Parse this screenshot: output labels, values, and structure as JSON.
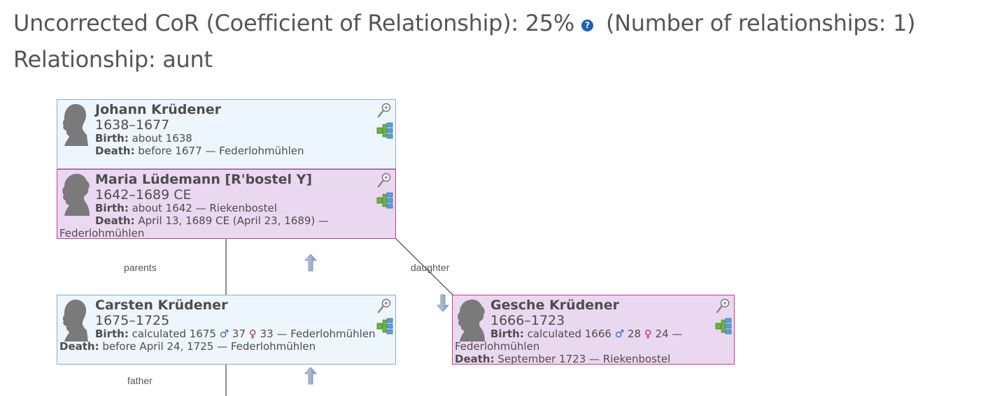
{
  "header": {
    "cor_label": "Uncorrected CoR (Coefficient of Relationship): 25%",
    "help_glyph": "?",
    "num_relationships": "(Number of relationships: 1)",
    "relationship": "Relationship: aunt"
  },
  "edge_labels": {
    "parents": "parents",
    "daughter": "daughter",
    "father": "father"
  },
  "people": {
    "johann": {
      "name": "Johann Krüdener",
      "dates": "1638–1677",
      "birth_label": "Birth:",
      "birth_value": "about 1638",
      "death_label": "Death:",
      "death_value": "before 1677 — Federlohmühlen"
    },
    "maria": {
      "name": "Maria Lüdemann [R'bostel Y]",
      "dates": "1642–1689 CE",
      "birth_label": "Birth:",
      "birth_value": "about 1642 — Riekenbostel",
      "death_label": "Death:",
      "death_value": "April 13, 1689 CE (April 23, 1689) —",
      "death_place": "Federlohmühlen"
    },
    "carsten": {
      "name": "Carsten Krüdener",
      "dates": "1675–1725",
      "birth_label": "Birth:",
      "birth_value": "calculated 1675",
      "male_sym": "♂",
      "father_age": "37",
      "female_sym": "♀",
      "mother_age": "33",
      "birth_place": "— Federlohmühlen",
      "death_label": "Death:",
      "death_value": "before April 24, 1725 — Federlohmühlen"
    },
    "gesche": {
      "name": "Gesche Krüdener",
      "dates": "1666–1723",
      "birth_label": "Birth:",
      "birth_value": "calculated 1666",
      "male_sym": "♂",
      "father_age": "28",
      "female_sym": "♀",
      "mother_age": "24 —",
      "birth_place": "Federlohmühlen",
      "death_label": "Death:",
      "death_value": "September 1723 — Riekenbostel"
    }
  },
  "colors": {
    "male_bg": "#eef6fd",
    "male_border": "#86aecd",
    "female_bg": "#ead8f0",
    "female_border": "#cc3b8a",
    "male_symbol": "#3b63b5",
    "female_symbol": "#b3297a"
  },
  "icons": {
    "zoom": "magnifier-zoom-icon",
    "tree": "family-tree-icon",
    "arrow_up": "arrow-up-icon",
    "arrow_down": "arrow-down-icon",
    "help": "help-icon"
  }
}
